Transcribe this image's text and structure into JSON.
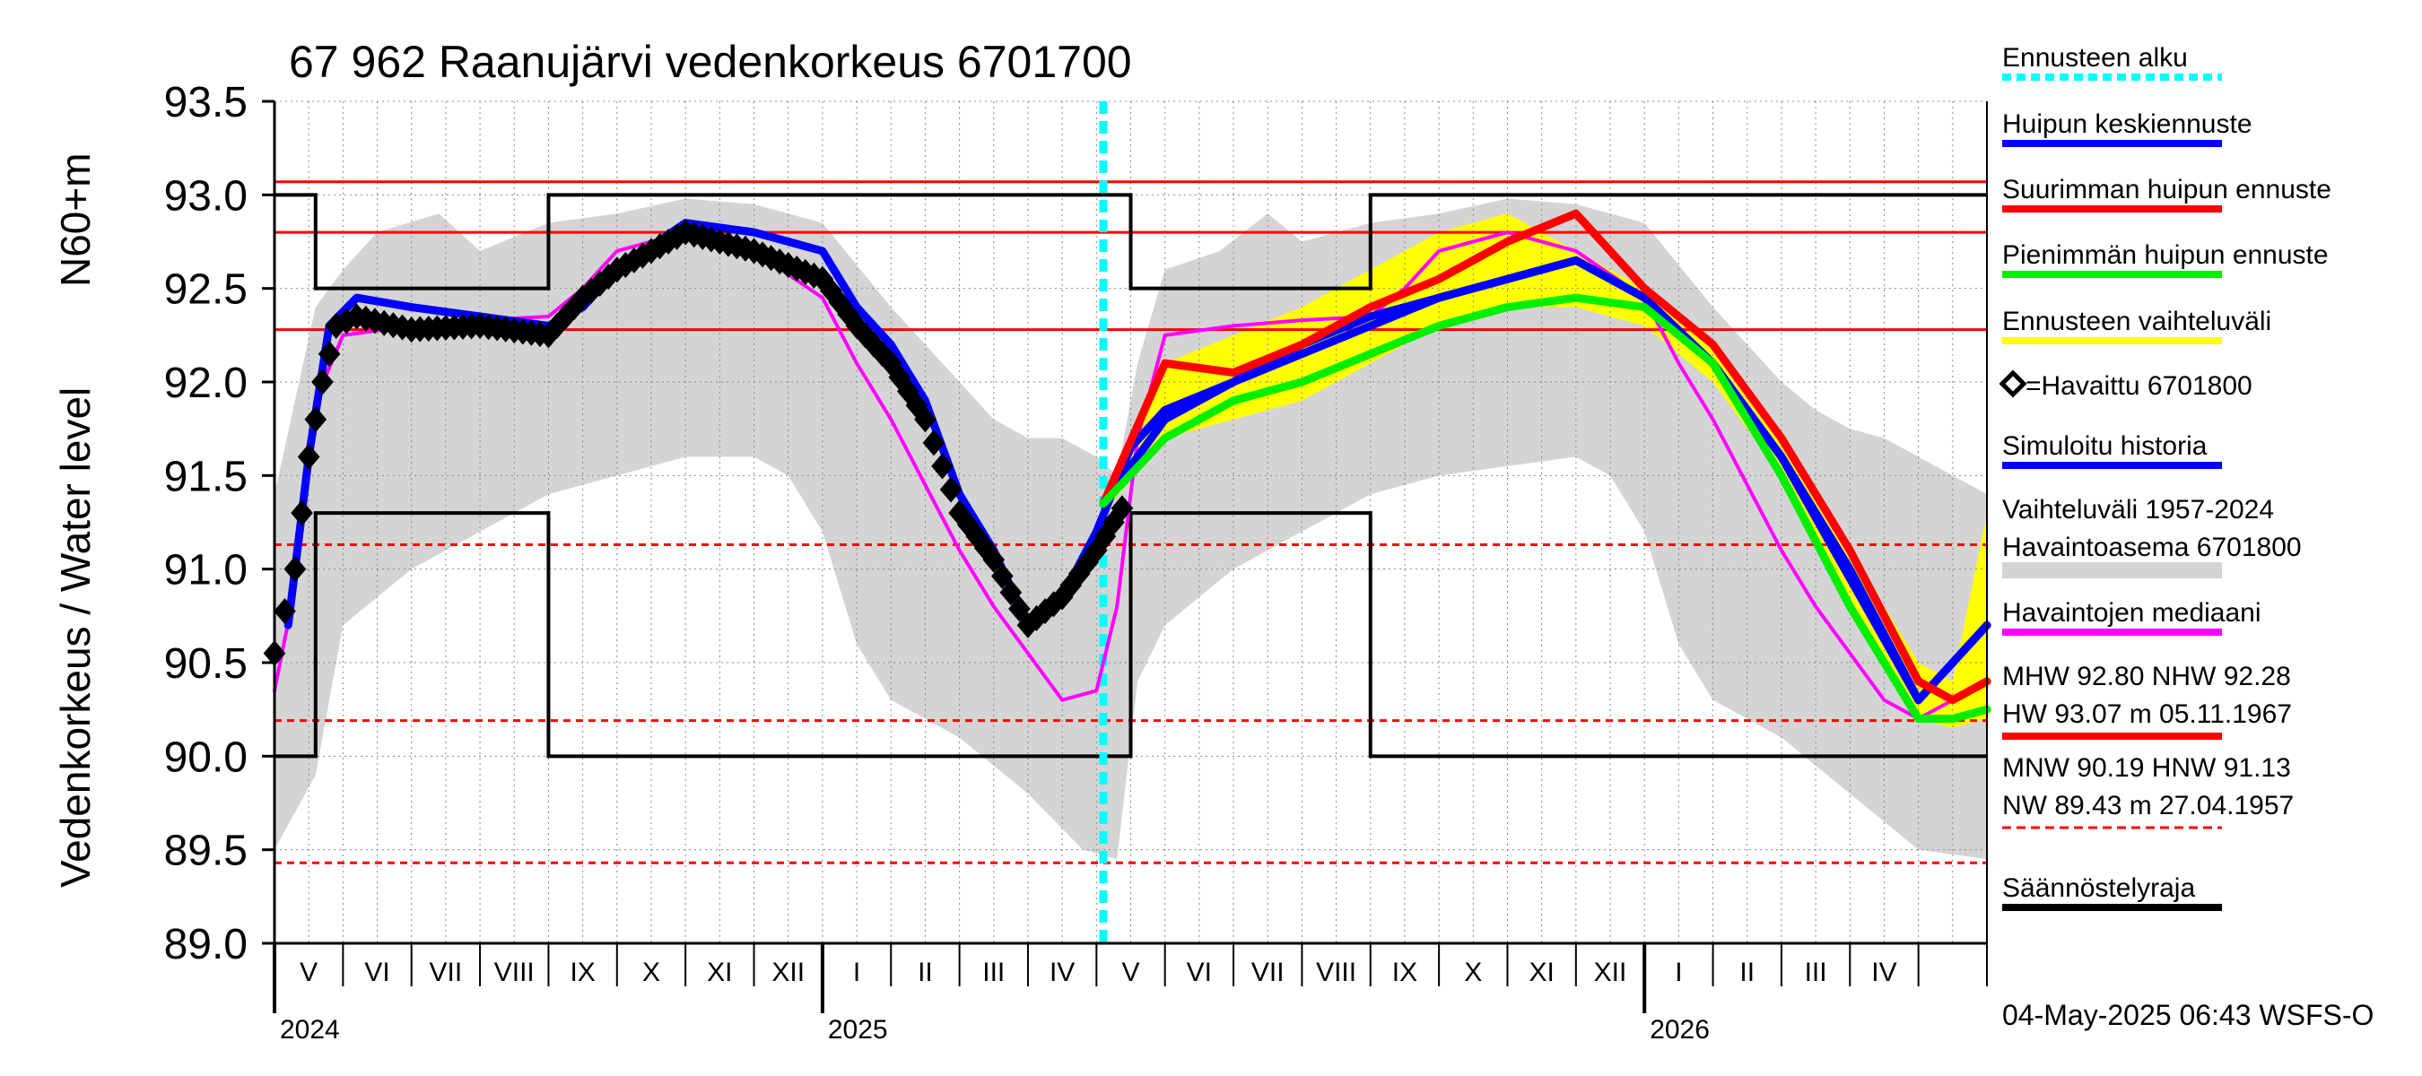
{
  "chart_data": {
    "type": "line",
    "title": "67 962 Raanujärvi vedenkorkeus 6701700",
    "ylabel_top": "N60+m",
    "ylabel_main": "Vedenkorkeus / Water level",
    "ylim": [
      89.0,
      93.5
    ],
    "ytick_labels": [
      "89.0",
      "89.5",
      "90.0",
      "90.5",
      "91.0",
      "91.5",
      "92.0",
      "92.5",
      "93.0",
      "93.5"
    ],
    "xlim_months": [
      0,
      25
    ],
    "months": [
      "V",
      "VI",
      "VII",
      "VIII",
      "IX",
      "X",
      "XI",
      "XII",
      "I",
      "II",
      "III",
      "IV",
      "V",
      "VI",
      "VII",
      "VIII",
      "IX",
      "X",
      "XI",
      "XII",
      "I",
      "II",
      "III",
      "IV"
    ],
    "years": [
      {
        "label": "2024",
        "month": 0
      },
      {
        "label": "2025",
        "month": 8
      },
      {
        "label": "2026",
        "month": 20
      }
    ],
    "forecast_start_month": 12.1,
    "reference_levels": {
      "HW": 93.07,
      "MHW": 92.8,
      "NHW": 92.28,
      "HNW": 91.13,
      "MNW": 90.19,
      "NW": 89.43
    },
    "regulation_limit": [
      [
        0,
        93.0
      ],
      [
        0.6,
        93.0
      ],
      [
        0.6,
        92.5
      ],
      [
        4.0,
        92.5
      ],
      [
        4.0,
        93.0
      ],
      [
        12.5,
        93.0
      ],
      [
        12.5,
        92.5
      ],
      [
        16.0,
        92.5
      ],
      [
        16.0,
        93.0
      ],
      [
        25,
        93.0
      ]
    ],
    "regulation_limit_lower": [
      [
        0,
        90.0
      ],
      [
        0.6,
        90.0
      ],
      [
        0.6,
        91.3
      ],
      [
        4.0,
        91.3
      ],
      [
        4.0,
        90.0
      ],
      [
        12.5,
        90.0
      ],
      [
        12.5,
        91.3
      ],
      [
        16.0,
        91.3
      ],
      [
        16.0,
        90.0
      ],
      [
        25,
        90.0
      ]
    ],
    "series": [
      {
        "name": "Vaihteluväli 1957-2024 Havaintoasema 6701800",
        "kind": "band",
        "color": "#d4d4d4",
        "upper": [
          [
            0,
            91.4
          ],
          [
            0.3,
            91.9
          ],
          [
            0.6,
            92.4
          ],
          [
            1,
            92.6
          ],
          [
            1.5,
            92.8
          ],
          [
            2.4,
            92.9
          ],
          [
            3,
            92.7
          ],
          [
            4,
            92.85
          ],
          [
            5,
            92.9
          ],
          [
            6,
            92.98
          ],
          [
            7,
            92.95
          ],
          [
            8,
            92.85
          ],
          [
            9,
            92.4
          ],
          [
            9.5,
            92.2
          ],
          [
            10,
            92.0
          ],
          [
            10.5,
            91.8
          ],
          [
            11,
            91.7
          ],
          [
            11.5,
            91.7
          ],
          [
            12,
            91.6
          ],
          [
            12.3,
            91.5
          ],
          [
            12.6,
            92.1
          ],
          [
            13,
            92.6
          ],
          [
            13.8,
            92.7
          ],
          [
            14.5,
            92.9
          ],
          [
            15,
            92.75
          ],
          [
            16,
            92.85
          ],
          [
            17,
            92.9
          ],
          [
            18,
            92.98
          ],
          [
            19,
            92.95
          ],
          [
            20,
            92.85
          ],
          [
            21,
            92.4
          ],
          [
            21.5,
            92.2
          ],
          [
            22,
            92.0
          ],
          [
            22.5,
            91.85
          ],
          [
            23,
            91.75
          ],
          [
            23.5,
            91.7
          ],
          [
            24,
            91.6
          ],
          [
            24.5,
            91.5
          ],
          [
            25,
            91.4
          ]
        ],
        "lower": [
          [
            0,
            89.5
          ],
          [
            0.6,
            89.9
          ],
          [
            1,
            90.7
          ],
          [
            2,
            91.0
          ],
          [
            3,
            91.2
          ],
          [
            4,
            91.4
          ],
          [
            5,
            91.5
          ],
          [
            6,
            91.6
          ],
          [
            7,
            91.6
          ],
          [
            7.5,
            91.5
          ],
          [
            8,
            91.2
          ],
          [
            8.5,
            90.6
          ],
          [
            9,
            90.3
          ],
          [
            10,
            90.1
          ],
          [
            11,
            89.8
          ],
          [
            11.8,
            89.5
          ],
          [
            12.3,
            89.45
          ],
          [
            12.6,
            90.4
          ],
          [
            13,
            90.7
          ],
          [
            14,
            91.0
          ],
          [
            15,
            91.2
          ],
          [
            16,
            91.4
          ],
          [
            17,
            91.5
          ],
          [
            18,
            91.55
          ],
          [
            19,
            91.6
          ],
          [
            19.5,
            91.5
          ],
          [
            20,
            91.2
          ],
          [
            20.5,
            90.6
          ],
          [
            21,
            90.3
          ],
          [
            22,
            90.1
          ],
          [
            23,
            89.8
          ],
          [
            24,
            89.5
          ],
          [
            25,
            89.45
          ]
        ]
      },
      {
        "name": "Ennusteen vaihteluväli",
        "kind": "band",
        "color": "#ffff00",
        "upper": [
          [
            12.1,
            91.4
          ],
          [
            13,
            92.1
          ],
          [
            14,
            92.25
          ],
          [
            15,
            92.4
          ],
          [
            16,
            92.6
          ],
          [
            17,
            92.8
          ],
          [
            18,
            92.9
          ],
          [
            19,
            92.7
          ],
          [
            20,
            92.5
          ],
          [
            21,
            92.2
          ],
          [
            22,
            91.7
          ],
          [
            23,
            91.1
          ],
          [
            24,
            90.5
          ],
          [
            24.5,
            90.4
          ],
          [
            25,
            91.3
          ]
        ],
        "lower": [
          [
            12.1,
            91.3
          ],
          [
            13,
            91.7
          ],
          [
            14,
            91.8
          ],
          [
            15,
            91.9
          ],
          [
            16,
            92.1
          ],
          [
            17,
            92.3
          ],
          [
            18,
            92.4
          ],
          [
            19,
            92.4
          ],
          [
            20,
            92.3
          ],
          [
            21,
            92.0
          ],
          [
            22,
            91.5
          ],
          [
            23,
            90.8
          ],
          [
            24,
            90.2
          ],
          [
            24.5,
            90.15
          ],
          [
            25,
            90.2
          ]
        ]
      },
      {
        "name": "Havaintojen mediaani",
        "kind": "line",
        "color": "#ff00ff",
        "points": [
          [
            0,
            90.35
          ],
          [
            0.3,
            90.9
          ],
          [
            0.6,
            91.9
          ],
          [
            1,
            92.25
          ],
          [
            2,
            92.3
          ],
          [
            3,
            92.33
          ],
          [
            4,
            92.35
          ],
          [
            4.5,
            92.5
          ],
          [
            5,
            92.7
          ],
          [
            6,
            92.8
          ],
          [
            7,
            92.7
          ],
          [
            8,
            92.45
          ],
          [
            8.5,
            92.1
          ],
          [
            9,
            91.8
          ],
          [
            9.5,
            91.45
          ],
          [
            10,
            91.1
          ],
          [
            10.5,
            90.8
          ],
          [
            11,
            90.55
          ],
          [
            11.5,
            90.3
          ],
          [
            12,
            90.35
          ],
          [
            12.3,
            90.8
          ],
          [
            12.6,
            91.7
          ],
          [
            13,
            92.25
          ],
          [
            14,
            92.3
          ],
          [
            15,
            92.33
          ],
          [
            16,
            92.35
          ],
          [
            16.5,
            92.5
          ],
          [
            17,
            92.7
          ],
          [
            18,
            92.8
          ],
          [
            19,
            92.7
          ],
          [
            20,
            92.45
          ],
          [
            20.5,
            92.1
          ],
          [
            21,
            91.8
          ],
          [
            21.5,
            91.45
          ],
          [
            22,
            91.1
          ],
          [
            22.5,
            90.8
          ],
          [
            23,
            90.55
          ],
          [
            23.5,
            90.3
          ],
          [
            24,
            90.2
          ],
          [
            24.5,
            90.3
          ]
        ]
      },
      {
        "name": "Simuloitu historia",
        "kind": "line",
        "color": "#0000ff",
        "points": [
          [
            0.2,
            90.7
          ],
          [
            0.5,
            91.6
          ],
          [
            0.8,
            92.3
          ],
          [
            1.2,
            92.45
          ],
          [
            2,
            92.4
          ],
          [
            3,
            92.35
          ],
          [
            4,
            92.3
          ],
          [
            4.5,
            92.4
          ],
          [
            5,
            92.6
          ],
          [
            6,
            92.85
          ],
          [
            7,
            92.8
          ],
          [
            8,
            92.7
          ],
          [
            8.5,
            92.4
          ],
          [
            9,
            92.2
          ],
          [
            9.5,
            91.9
          ],
          [
            10,
            91.4
          ],
          [
            10.5,
            91.1
          ],
          [
            11,
            90.7
          ],
          [
            11.5,
            90.85
          ],
          [
            12,
            91.2
          ],
          [
            12.5,
            91.65
          ],
          [
            13,
            91.85
          ],
          [
            14,
            92.0
          ],
          [
            15,
            92.2
          ],
          [
            16,
            92.35
          ],
          [
            17,
            92.45
          ],
          [
            18,
            92.55
          ],
          [
            19,
            92.65
          ],
          [
            20,
            92.45
          ],
          [
            21,
            92.1
          ],
          [
            22,
            91.6
          ],
          [
            23,
            91.0
          ],
          [
            24,
            90.3
          ],
          [
            24.5,
            90.5
          ],
          [
            25,
            90.7
          ]
        ]
      },
      {
        "name": "Havaittu 6701800",
        "kind": "markers",
        "color": "#000000",
        "points": [
          [
            0,
            90.55
          ],
          [
            0.3,
            91.0
          ],
          [
            0.5,
            91.6
          ],
          [
            0.7,
            92.0
          ],
          [
            0.9,
            92.3
          ],
          [
            1.2,
            92.35
          ],
          [
            2,
            92.28
          ],
          [
            3,
            92.3
          ],
          [
            4,
            92.25
          ],
          [
            4.5,
            92.45
          ],
          [
            5,
            92.6
          ],
          [
            6,
            92.8
          ],
          [
            6.5,
            92.75
          ],
          [
            7,
            92.7
          ],
          [
            8,
            92.55
          ],
          [
            8.5,
            92.3
          ],
          [
            9,
            92.1
          ],
          [
            9.5,
            91.8
          ],
          [
            10,
            91.3
          ],
          [
            10.5,
            91.05
          ],
          [
            11,
            90.7
          ],
          [
            11.5,
            90.85
          ],
          [
            12,
            91.1
          ],
          [
            12.5,
            91.4
          ]
        ]
      },
      {
        "name": "Huipun keskiennuste",
        "kind": "line",
        "color": "#0000ff",
        "points": [
          [
            12.1,
            91.35
          ],
          [
            13,
            91.8
          ],
          [
            14,
            92.0
          ],
          [
            15,
            92.15
          ],
          [
            16,
            92.3
          ],
          [
            17,
            92.45
          ],
          [
            18,
            92.55
          ],
          [
            19,
            92.65
          ],
          [
            20,
            92.45
          ],
          [
            21,
            92.1
          ],
          [
            22,
            91.6
          ],
          [
            23,
            90.95
          ],
          [
            24,
            90.3
          ],
          [
            24.5,
            90.5
          ],
          [
            25,
            90.7
          ]
        ]
      },
      {
        "name": "Suurimman huipun ennuste",
        "kind": "line",
        "color": "#ff0000",
        "points": [
          [
            12.1,
            91.35
          ],
          [
            13,
            92.1
          ],
          [
            14,
            92.05
          ],
          [
            15,
            92.2
          ],
          [
            16,
            92.4
          ],
          [
            17,
            92.55
          ],
          [
            18,
            92.75
          ],
          [
            19,
            92.9
          ],
          [
            20,
            92.5
          ],
          [
            21,
            92.2
          ],
          [
            22,
            91.7
          ],
          [
            23,
            91.1
          ],
          [
            24,
            90.4
          ],
          [
            24.5,
            90.3
          ],
          [
            25,
            90.4
          ]
        ]
      },
      {
        "name": "Pienimmän huipun ennuste",
        "kind": "line",
        "color": "#00ee00",
        "points": [
          [
            12.1,
            91.35
          ],
          [
            13,
            91.7
          ],
          [
            14,
            91.9
          ],
          [
            15,
            92.0
          ],
          [
            16,
            92.15
          ],
          [
            17,
            92.3
          ],
          [
            18,
            92.4
          ],
          [
            19,
            92.45
          ],
          [
            20,
            92.4
          ],
          [
            21,
            92.1
          ],
          [
            22,
            91.5
          ],
          [
            23,
            90.8
          ],
          [
            24,
            90.2
          ],
          [
            24.5,
            90.2
          ],
          [
            25,
            90.25
          ]
        ]
      }
    ],
    "legend": [
      {
        "label": "Ennusteen alku",
        "color": "#00ffff",
        "style": "dash"
      },
      {
        "label": "Huipun keskiennuste",
        "color": "#0000ff",
        "style": "line"
      },
      {
        "label": "Suurimman huipun ennuste",
        "color": "#ff0000",
        "style": "line"
      },
      {
        "label": "Pienimmän huipun ennuste",
        "color": "#00ee00",
        "style": "line"
      },
      {
        "label": "Ennusteen vaihteluväli",
        "color": "#ffff00",
        "style": "line"
      },
      {
        "label": "=Havaittu 6701800",
        "color": "#000000",
        "style": "diamond"
      },
      {
        "label": "Simuloitu historia",
        "color": "#0000ff",
        "style": "line"
      },
      {
        "label": "Vaihteluväli 1957-2024",
        "label2": " Havaintoasema 6701800",
        "color": "#d4d4d4",
        "style": "band"
      },
      {
        "label": "Havaintojen mediaani",
        "color": "#ff00ff",
        "style": "line"
      },
      {
        "label": "MHW  92.80 NHW  92.28",
        "label2": "HW  93.07 m 05.11.1967",
        "color": "#ff0000",
        "style": "line"
      },
      {
        "label": "MNW  90.19 HNW  91.13",
        "label2": "NW  89.43 m 27.04.1957",
        "color": "#ff0000",
        "style": "dash"
      },
      {
        "label": "Säännöstelyraja",
        "color": "#000000",
        "style": "line"
      }
    ],
    "footer": "04-May-2025 06:43 WSFS-O"
  }
}
